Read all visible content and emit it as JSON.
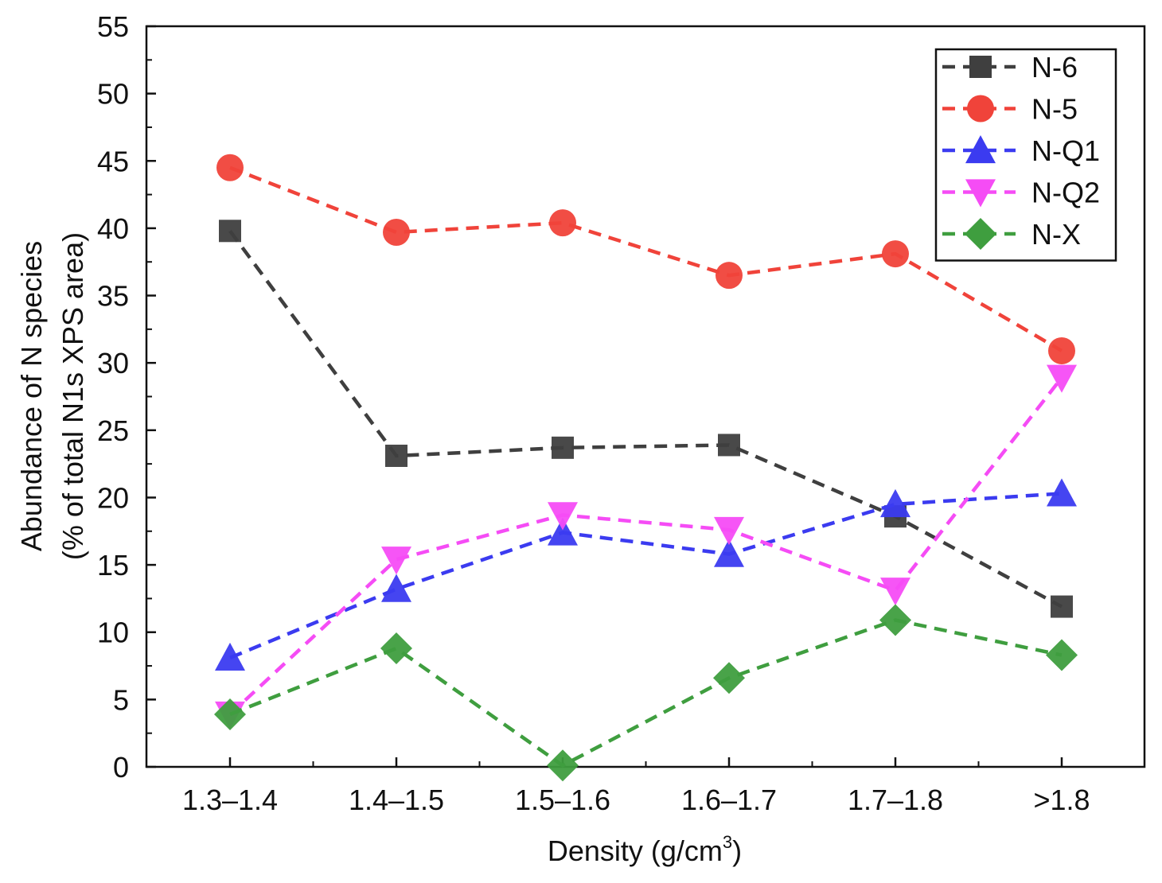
{
  "chart_data": {
    "type": "line",
    "title": "",
    "xlabel": "Density (g/cm",
    "xlabel_sup": "3",
    "xlabel_end": ")",
    "ylabel_line1": "Abundance of N species",
    "ylabel_line2": "(% of total N1s XPS area)",
    "ylim": [
      0,
      55
    ],
    "yticks": [
      "0",
      "5",
      "10",
      "15",
      "20",
      "25",
      "30",
      "35",
      "40",
      "45",
      "50",
      "55"
    ],
    "categories": [
      "1.3–1.4",
      "1.4–1.5",
      "1.5–1.6",
      "1.6–1.7",
      "1.7–1.8",
      ">1.8"
    ],
    "legend_position": "top-right",
    "series": [
      {
        "name": "N-6",
        "color": "#3f3f3f",
        "marker": "square",
        "values": [
          39.8,
          23.1,
          23.7,
          23.9,
          18.6,
          11.9
        ]
      },
      {
        "name": "N-5",
        "color": "#f0433a",
        "marker": "circle",
        "values": [
          44.5,
          39.7,
          40.4,
          36.5,
          38.1,
          30.9
        ]
      },
      {
        "name": "N-Q1",
        "color": "#3b3bf0",
        "marker": "triangle-up",
        "values": [
          8.1,
          13.2,
          17.4,
          15.8,
          19.5,
          20.3
        ]
      },
      {
        "name": "N-Q2",
        "color": "#f54cf5",
        "marker": "triangle-down",
        "values": [
          3.9,
          15.4,
          18.7,
          17.6,
          13.1,
          28.9
        ]
      },
      {
        "name": "N-X",
        "color": "#3f9e3f",
        "marker": "diamond",
        "values": [
          3.9,
          8.8,
          0.1,
          6.6,
          10.9,
          8.3
        ]
      }
    ]
  }
}
